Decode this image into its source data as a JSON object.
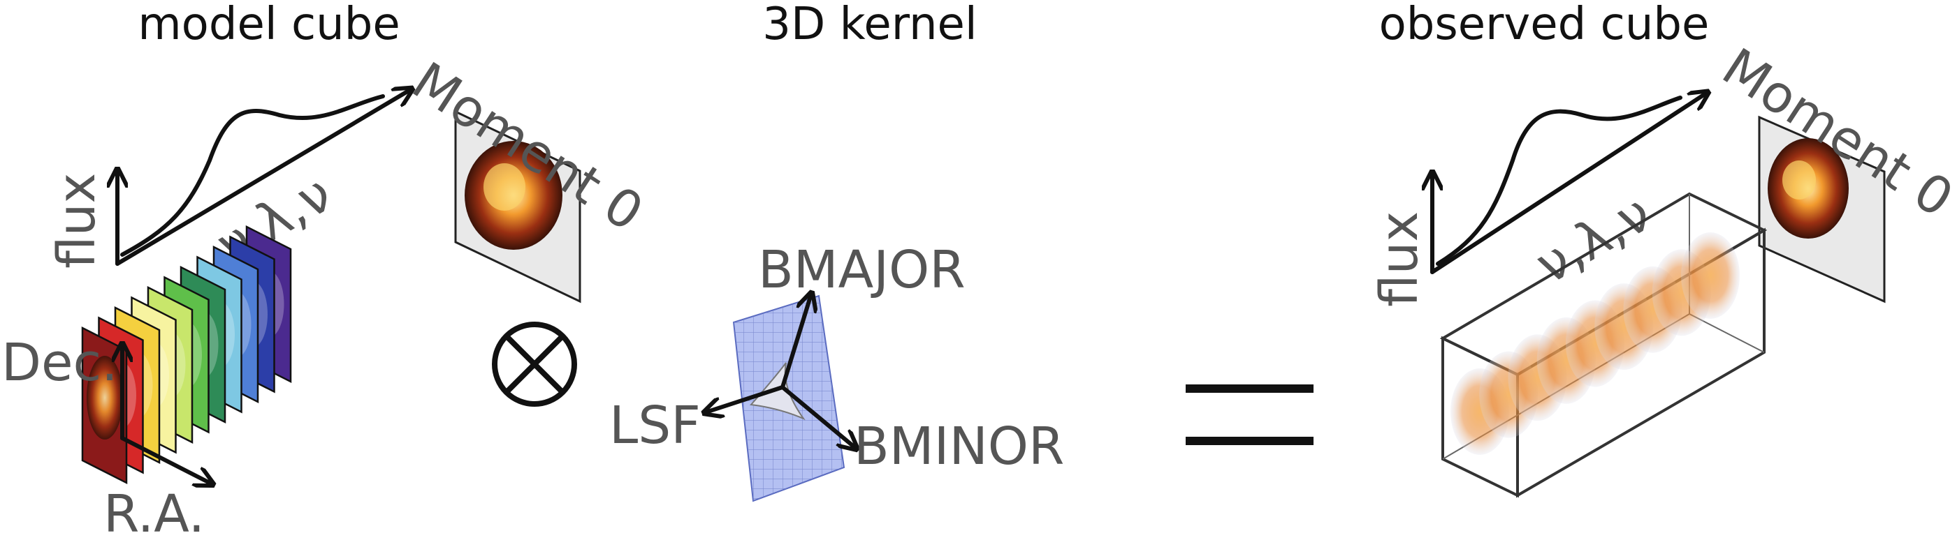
{
  "panels": {
    "model": {
      "title": "model cube",
      "flux_label": "flux",
      "spectral_label": "ν,λ,ν",
      "moment_label": "Moment 0",
      "dec_label": "Dec.",
      "ra_label": "R.A."
    },
    "kernel": {
      "title": "3D kernel",
      "bmajor_label": "BMAJOR",
      "bminor_label": "BMINOR",
      "lsf_label": "LSF"
    },
    "observed": {
      "title": "observed cube",
      "flux_label": "flux",
      "spectral_label": "ν,λ,ν",
      "moment_label": "Moment 0"
    }
  },
  "operators": {
    "convolution_symbol": "⊗",
    "equals_symbol": "="
  },
  "colors": {
    "channel_slices": [
      "#8b1a1a",
      "#d62828",
      "#f4d03f",
      "#f7f3a0",
      "#c8e66b",
      "#5fbf4a",
      "#2e8b57",
      "#7ec8e3",
      "#4f7fd6",
      "#2c3ea8",
      "#4b2a8f"
    ],
    "kernel_plane": "#a9b8f0",
    "galaxy_core": "#e07b1a"
  }
}
